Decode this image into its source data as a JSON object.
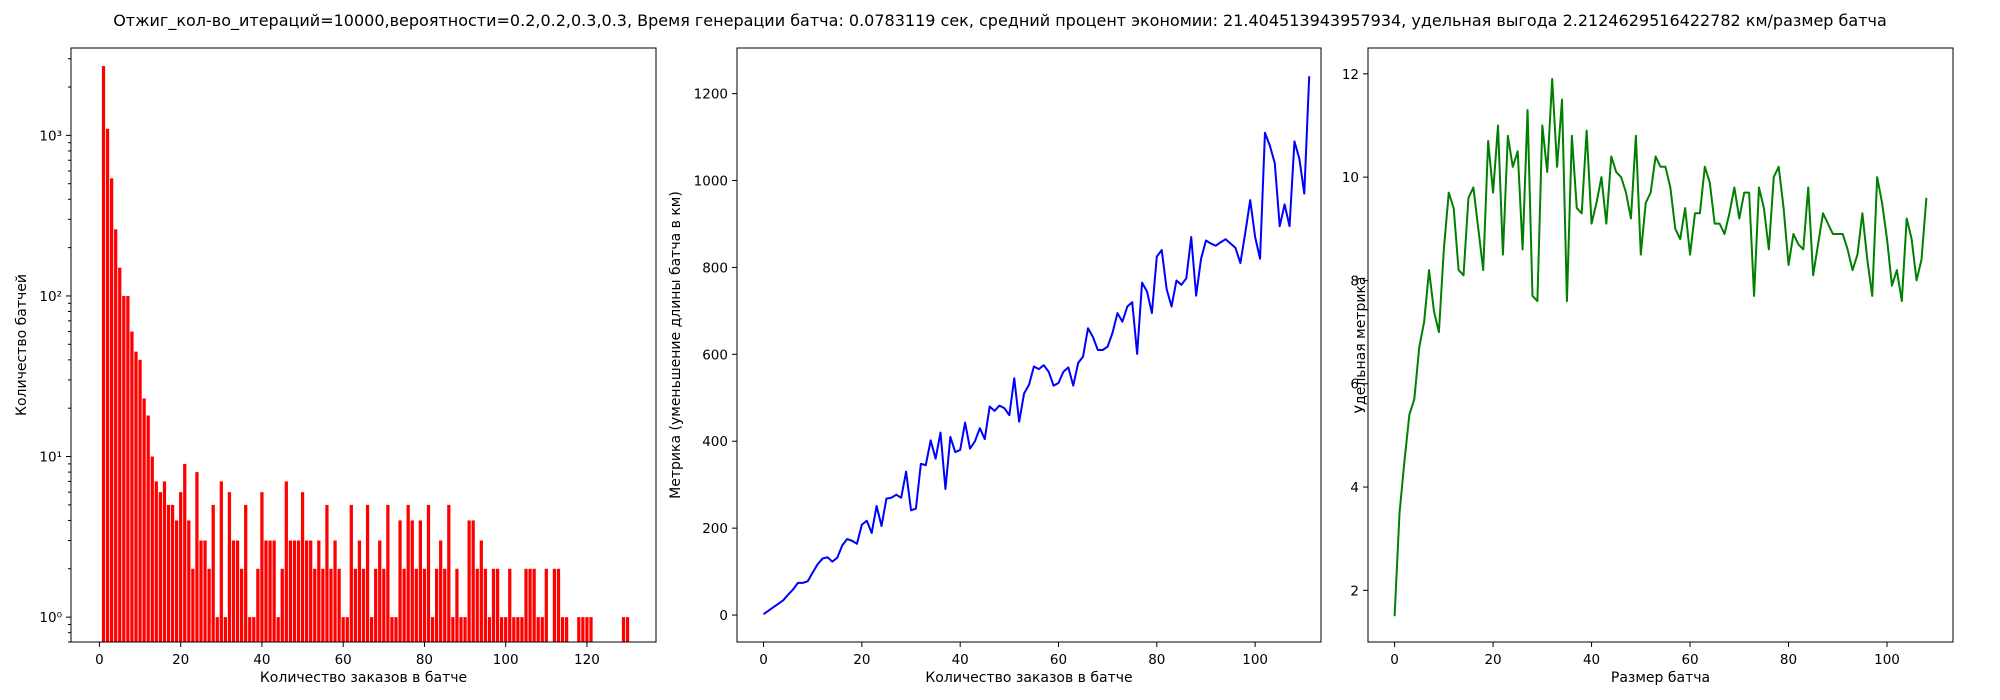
{
  "title": "Отжиг_кол-во_итераций=10000,вероятности=0.2,0.2,0.3,0.3, Время генерации батча: 0.0783119 сек, средний процент экономии: 21.404513943957934, удельная выгода 2.2124629516422782 км/размер батча",
  "chart_data": [
    {
      "type": "bar",
      "yscale": "log",
      "color": "#ff0000",
      "xlabel": "Количество заказов в батче",
      "ylabel": "Количество батчей",
      "xlim": [
        -7,
        137
      ],
      "ylim": [
        0.7,
        3500
      ],
      "xticks": [
        0,
        20,
        40,
        60,
        80,
        100,
        120
      ],
      "yticks": [
        {
          "value": 1,
          "label": "10⁰"
        },
        {
          "value": 10,
          "label": "10¹"
        },
        {
          "value": 100,
          "label": "10²"
        },
        {
          "value": 1000,
          "label": "10³"
        }
      ],
      "categories": [
        1,
        2,
        3,
        4,
        5,
        6,
        7,
        8,
        9,
        10,
        11,
        12,
        13,
        14,
        15,
        16,
        17,
        18,
        19,
        20,
        21,
        22,
        23,
        24,
        25,
        26,
        27,
        28,
        29,
        30,
        31,
        32,
        33,
        34,
        35,
        36,
        37,
        38,
        39,
        40,
        41,
        42,
        43,
        44,
        45,
        46,
        47,
        48,
        49,
        50,
        51,
        52,
        53,
        54,
        55,
        56,
        57,
        58,
        59,
        60,
        61,
        62,
        63,
        64,
        65,
        66,
        67,
        68,
        69,
        70,
        71,
        72,
        73,
        74,
        75,
        76,
        77,
        78,
        79,
        80,
        81,
        82,
        83,
        84,
        85,
        86,
        87,
        88,
        89,
        90,
        91,
        92,
        93,
        94,
        95,
        96,
        97,
        98,
        99,
        100,
        101,
        102,
        103,
        104,
        105,
        106,
        107,
        108,
        109,
        110,
        111,
        112,
        113,
        114,
        115,
        116,
        117,
        118,
        119,
        120,
        121,
        122,
        123,
        124,
        125,
        126,
        127,
        128,
        129,
        130
      ],
      "values": [
        2700,
        1100,
        540,
        260,
        150,
        100,
        100,
        60,
        45,
        40,
        23,
        18,
        10,
        7,
        6,
        7,
        5,
        5,
        4,
        6,
        9,
        4,
        2,
        8,
        3,
        3,
        2,
        5,
        1,
        7,
        1,
        6,
        3,
        3,
        2,
        5,
        1,
        1,
        2,
        6,
        3,
        3,
        3,
        1,
        2,
        7,
        3,
        3,
        3,
        6,
        3,
        3,
        2,
        3,
        2,
        5,
        2,
        3,
        2,
        1,
        1,
        5,
        2,
        3,
        2,
        5,
        1,
        2,
        3,
        2,
        5,
        1,
        1,
        4,
        2,
        5,
        4,
        2,
        4,
        2,
        5,
        1,
        2,
        3,
        2,
        5,
        1,
        2,
        1,
        1,
        4,
        4,
        2,
        3,
        2,
        1,
        2,
        2,
        1,
        1,
        2,
        1,
        1,
        1,
        2,
        2,
        2,
        1,
        1,
        2,
        0,
        2,
        2,
        1,
        1,
        0,
        0,
        1,
        1,
        1,
        1,
        0,
        0,
        0,
        0,
        0,
        0,
        0,
        1,
        1
      ]
    },
    {
      "type": "line",
      "color": "#0000ff",
      "xlabel": "Количество заказов в батче",
      "ylabel": "Метрика (уменьшение длины батча в км)",
      "xlim": [
        -5.4,
        113.4
      ],
      "ylim": [
        -62,
        1305
      ],
      "xticks": [
        0,
        20,
        40,
        60,
        80,
        100
      ],
      "yticks": [
        0,
        200,
        400,
        600,
        800,
        1000,
        1200
      ],
      "y": [
        2,
        10,
        18,
        26,
        34,
        47,
        59,
        74,
        74,
        78,
        98,
        117,
        130,
        133,
        123,
        132,
        160,
        175,
        171,
        164,
        208,
        217,
        189,
        251,
        205,
        268,
        270,
        277,
        270,
        330,
        241,
        245,
        348,
        345,
        402,
        360,
        420,
        290,
        410,
        375,
        380,
        443,
        383,
        400,
        430,
        405,
        480,
        470,
        482,
        476,
        460,
        545,
        445,
        510,
        530,
        572,
        566,
        575,
        560,
        528,
        534,
        560,
        570,
        528,
        580,
        595,
        660,
        640,
        610,
        610,
        618,
        650,
        695,
        675,
        710,
        720,
        601,
        765,
        745,
        695,
        825,
        840,
        750,
        710,
        770,
        760,
        775,
        870,
        735,
        820,
        862,
        855,
        850,
        858,
        865,
        855,
        845,
        810,
        880,
        955,
        870,
        820,
        1110,
        1080,
        1040,
        895,
        945,
        895,
        1090,
        1050,
        970,
        1240
      ]
    },
    {
      "type": "line",
      "color": "#008000",
      "xlabel": "Размер батча",
      "ylabel": "Удельная метрика",
      "xlim": [
        -5.4,
        113.4
      ],
      "ylim": [
        1.0,
        12.5
      ],
      "xticks": [
        0,
        20,
        40,
        60,
        80,
        100
      ],
      "yticks": [
        2,
        4,
        6,
        8,
        10,
        12
      ],
      "y": [
        1.5,
        3.5,
        4.5,
        5.4,
        5.7,
        6.7,
        7.2,
        8.2,
        7.4,
        7.0,
        8.6,
        9.7,
        9.4,
        8.2,
        8.1,
        9.6,
        9.8,
        9.0,
        8.2,
        10.7,
        9.7,
        11.0,
        8.5,
        10.8,
        10.2,
        10.5,
        8.6,
        11.3,
        7.7,
        7.6,
        11.0,
        10.1,
        11.9,
        10.2,
        11.5,
        7.6,
        10.8,
        9.4,
        9.3,
        10.9,
        9.1,
        9.5,
        10.0,
        9.1,
        10.4,
        10.1,
        10.0,
        9.7,
        9.2,
        10.8,
        8.5,
        9.5,
        9.7,
        10.4,
        10.2,
        10.2,
        9.8,
        9.0,
        8.8,
        9.4,
        8.5,
        9.3,
        9.3,
        10.2,
        9.9,
        9.1,
        9.1,
        8.9,
        9.3,
        9.8,
        9.2,
        9.7,
        9.7,
        7.7,
        9.8,
        9.4,
        8.6,
        10.0,
        10.2,
        9.4,
        8.3,
        8.9,
        8.7,
        8.6,
        9.8,
        8.1,
        8.7,
        9.3,
        9.1,
        8.9,
        8.9,
        8.9,
        8.6,
        8.2,
        8.5,
        9.3,
        8.4,
        7.7,
        10.0,
        9.5,
        8.8,
        7.9,
        8.2,
        7.6,
        9.2,
        8.8,
        8.0,
        8.4,
        9.6
      ]
    }
  ]
}
